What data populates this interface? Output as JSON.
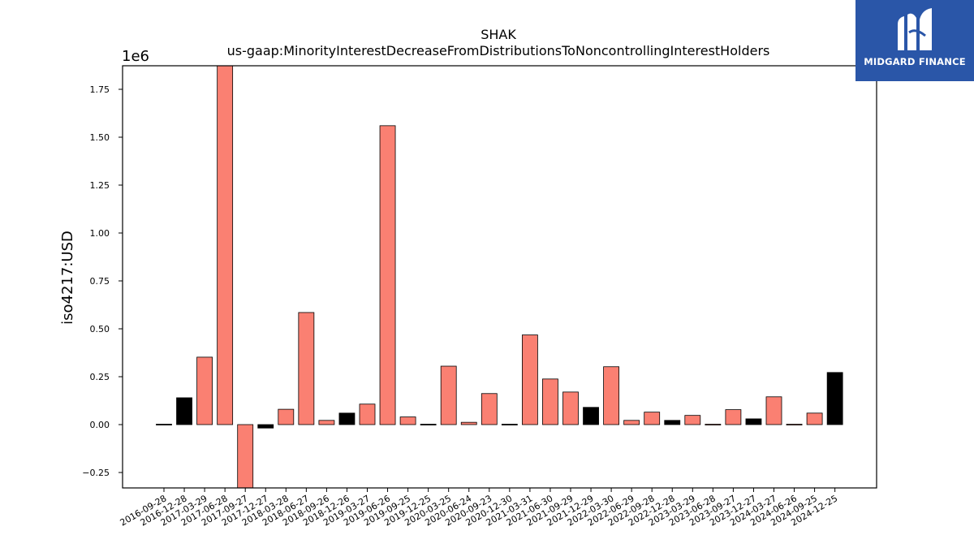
{
  "brand": {
    "name": "MIDGARD FINANCE",
    "logo_icon": "midgard-monogram-icon",
    "background": "#2a56a8"
  },
  "chart_data": {
    "type": "bar",
    "title": "SHAK",
    "subtitle": "us-gaap:MinorityInterestDecreaseFromDistributionsToNoncontrollingInterestHolders",
    "xlabel": "",
    "ylabel": "iso4217:USD",
    "y_scale_label": "1e6",
    "ylim": [
      -0.33,
      1.88
    ],
    "y_ticks": [
      -0.25,
      0.0,
      0.25,
      0.5,
      0.75,
      1.0,
      1.25,
      1.5,
      1.75
    ],
    "y_tick_labels": [
      "−0.25",
      "0.00",
      "0.25",
      "0.50",
      "0.75",
      "1.00",
      "1.25",
      "1.50",
      "1.75"
    ],
    "grid": false,
    "colors": {
      "salmon": "#fa8072",
      "black": "#000000"
    },
    "categories": [
      "2016-09-28",
      "2016-12-28",
      "2017-03-29",
      "2017-06-28",
      "2017-09-27",
      "2017-12-27",
      "2018-03-28",
      "2018-06-27",
      "2018-09-26",
      "2018-12-26",
      "2019-03-27",
      "2019-06-26",
      "2019-09-25",
      "2019-12-25",
      "2020-03-25",
      "2020-06-24",
      "2020-09-23",
      "2020-12-30",
      "2021-03-31",
      "2021-06-30",
      "2021-09-29",
      "2021-12-29",
      "2022-03-30",
      "2022-06-29",
      "2022-09-28",
      "2022-12-28",
      "2023-03-29",
      "2023-06-28",
      "2023-09-27",
      "2023-12-27",
      "2024-03-27",
      "2024-06-26",
      "2024-09-25",
      "2024-12-25"
    ],
    "values": [
      0.002,
      0.14,
      0.352,
      1.88,
      -0.33,
      -0.018,
      0.08,
      0.585,
      0.022,
      0.06,
      0.107,
      1.56,
      0.04,
      0.003,
      0.305,
      0.012,
      0.162,
      0.003,
      0.468,
      0.238,
      0.17,
      0.09,
      0.302,
      0.022,
      0.065,
      0.022,
      0.048,
      0.004,
      0.078,
      0.03,
      0.145,
      0.004,
      0.06,
      0.272
    ],
    "bar_colors": [
      "black",
      "black",
      "salmon",
      "salmon",
      "salmon",
      "black",
      "salmon",
      "salmon",
      "salmon",
      "black",
      "salmon",
      "salmon",
      "salmon",
      "black",
      "salmon",
      "salmon",
      "salmon",
      "black",
      "salmon",
      "salmon",
      "salmon",
      "black",
      "salmon",
      "salmon",
      "salmon",
      "black",
      "salmon",
      "salmon",
      "salmon",
      "black",
      "salmon",
      "salmon",
      "salmon",
      "black"
    ]
  }
}
